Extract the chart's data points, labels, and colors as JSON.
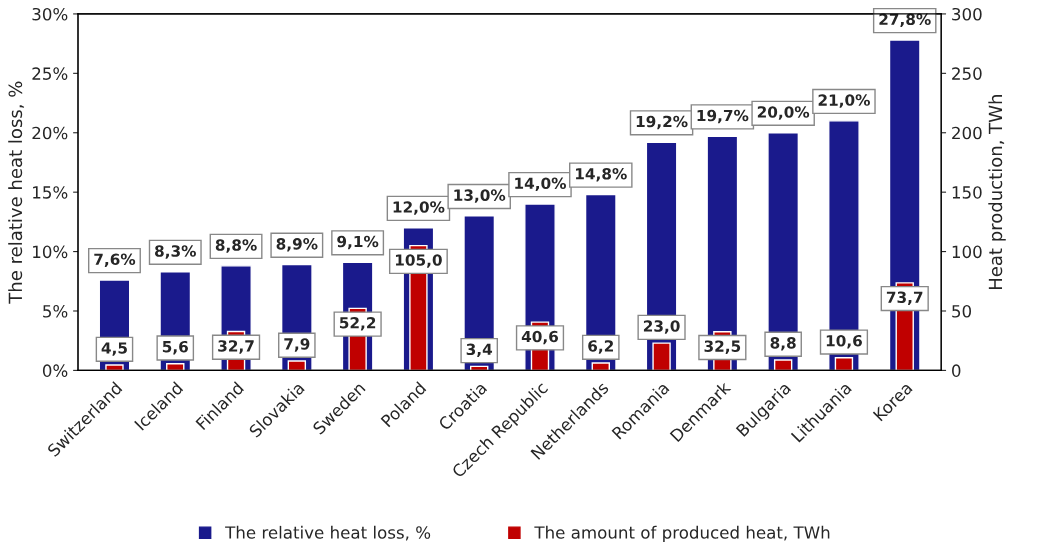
{
  "chart_data": {
    "type": "bar",
    "ylabel": "The relative heat loss, %",
    "y2label": "Heat production, TWh",
    "categories": [
      "Switzerland",
      "Iceland",
      "Finland",
      "Slovakia",
      "Sweden",
      "Poland",
      "Croatia",
      "Czech Republic",
      "Netherlands",
      "Romania",
      "Denmark",
      "Bulgaria",
      "Lithuania",
      "Korea"
    ],
    "series": [
      {
        "name": "The relative heat loss, %",
        "color": "#1a1a8c",
        "values": [
          7.6,
          8.3,
          8.8,
          8.9,
          9.1,
          12.0,
          13.0,
          14.0,
          14.8,
          19.2,
          19.7,
          20.0,
          21.0,
          27.8
        ],
        "value_labels": [
          "7,6%",
          "8,3%",
          "8,8%",
          "8,9%",
          "9,1%",
          "12,0%",
          "13,0%",
          "14,0%",
          "14,8%",
          "19,2%",
          "19,7%",
          "20,0%",
          "21,0%",
          "27,8%"
        ]
      },
      {
        "name": "The amount of produced heat, TWh",
        "color": "#c00000",
        "axis": "y2",
        "values": [
          4.5,
          5.6,
          32.7,
          7.9,
          52.2,
          105.0,
          3.4,
          40.6,
          6.2,
          23.0,
          32.5,
          8.8,
          10.6,
          73.7
        ],
        "value_labels": [
          "4,5",
          "5,6",
          "32,7",
          "7,9",
          "52,2",
          "105,0",
          "3,4",
          "40,6",
          "6,2",
          "23,0",
          "32,5",
          "8,8",
          "10,6",
          "73,7"
        ]
      }
    ],
    "ylim": [
      0,
      30
    ],
    "yticks": [
      {
        "value": 0,
        "label": "0%"
      },
      {
        "value": 5,
        "label": "5%"
      },
      {
        "value": 10,
        "label": "10%"
      },
      {
        "value": 15,
        "label": "15%"
      },
      {
        "value": 20,
        "label": "20%"
      },
      {
        "value": 25,
        "label": "25%"
      },
      {
        "value": 30,
        "label": "30%"
      }
    ],
    "y2lim": [
      0,
      300
    ],
    "y2ticks": [
      0,
      50,
      100,
      150,
      200,
      250,
      300
    ],
    "grid": false,
    "legend": "bottom"
  }
}
